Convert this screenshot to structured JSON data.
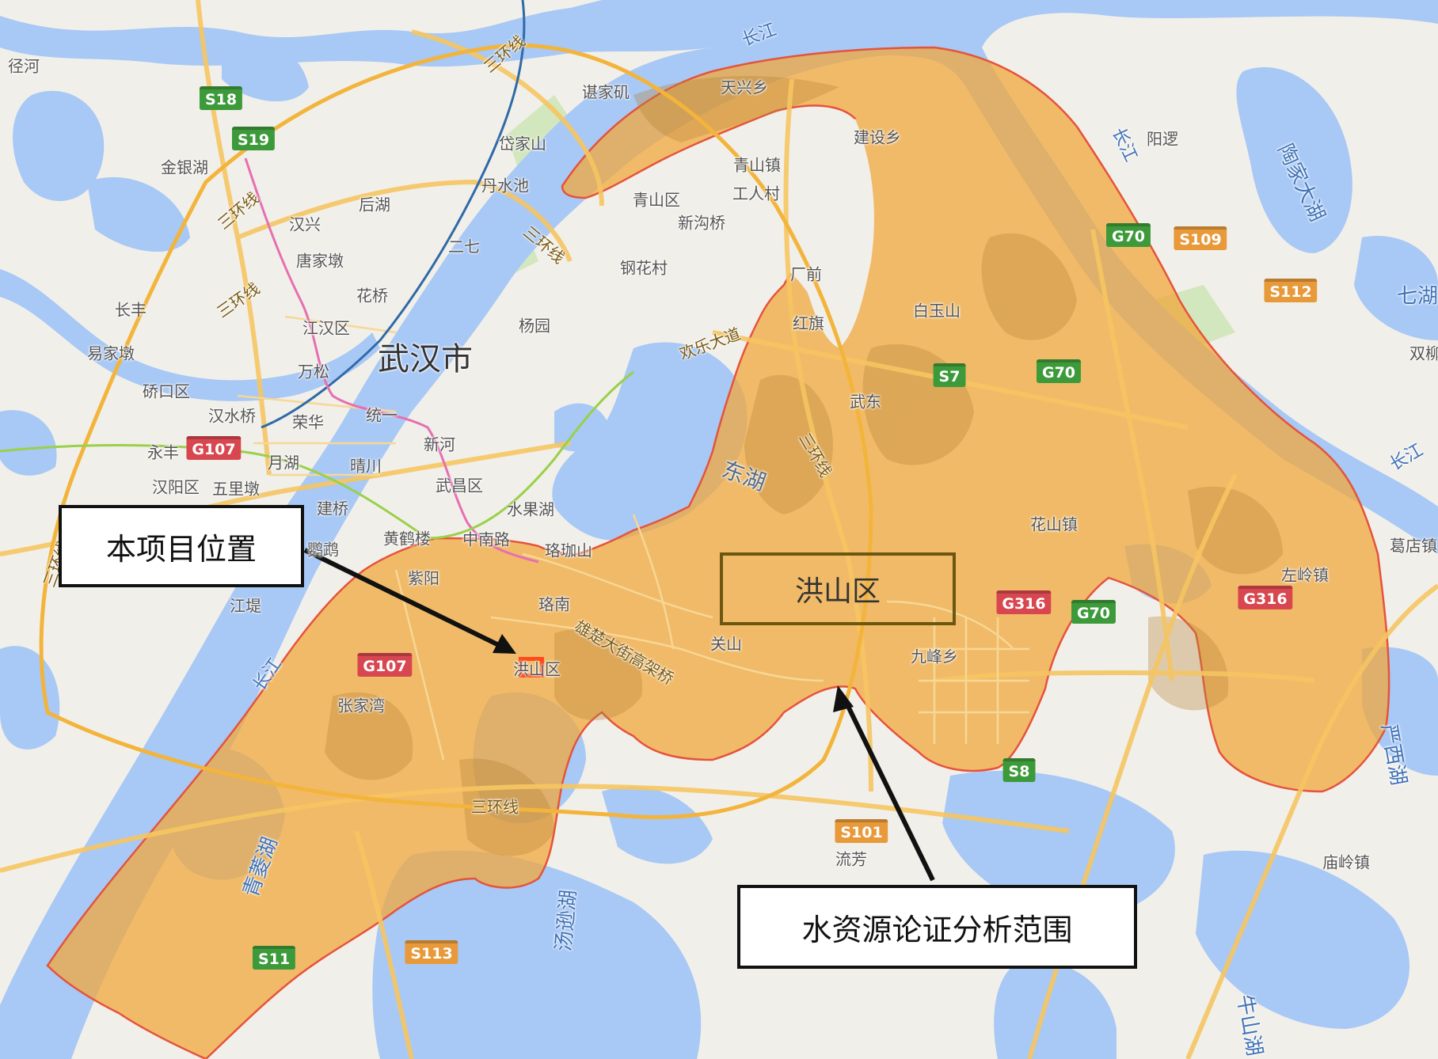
{
  "map": {
    "city_label": "武汉市",
    "district_label": "洪山区",
    "callouts": {
      "project_location": "本项目位置",
      "analysis_range": "水资源论证分析范围"
    },
    "colors": {
      "water": "#a8c8f5",
      "land": "#f1efe9",
      "district_fill": "#f0a83c",
      "district_border": "#e5533c",
      "marker": "#ff4a1c"
    },
    "places": [
      "径河",
      "金银湖",
      "谌家矶",
      "岱家山",
      "丹水池",
      "后湖",
      "汉兴",
      "二七",
      "唐家墩",
      "花桥",
      "长丰",
      "江汉区",
      "杨园",
      "易家墩",
      "万松",
      "硚口区",
      "汉水桥",
      "荣华",
      "统一",
      "新河",
      "永丰",
      "月湖",
      "晴川",
      "汉阳区",
      "五里墩",
      "武昌区",
      "建桥",
      "水果湖",
      "黄鹤楼",
      "中南路",
      "鹦鹉",
      "珞珈山",
      "紫阳",
      "江堤",
      "珞南",
      "关山",
      "洪山区",
      "张家湾",
      "流芳",
      "天兴乡",
      "建设乡",
      "青山镇",
      "工人村",
      "青山区",
      "新沟桥",
      "钢花村",
      "厂前",
      "红旗",
      "白玉山",
      "武东",
      "花山镇",
      "九峰乡",
      "阳逻",
      "葛店镇",
      "左岭镇",
      "庙岭镇",
      "双柳"
    ],
    "water_labels": [
      "长江",
      "东湖",
      "青菱湖",
      "汤逊湖",
      "陶家大湖",
      "七湖",
      "严西湖",
      "牛山湖"
    ],
    "road_labels": [
      "三环线",
      "欢乐大道",
      "雄楚大街高架桥"
    ],
    "shields": {
      "S18": "S18",
      "S19": "S19",
      "G107": "G107",
      "G70": "G70",
      "S7": "S7",
      "S109": "S109",
      "S112": "S112",
      "G316": "G316",
      "S8": "S8",
      "S101": "S101",
      "S11": "S11",
      "S113": "S113"
    }
  }
}
